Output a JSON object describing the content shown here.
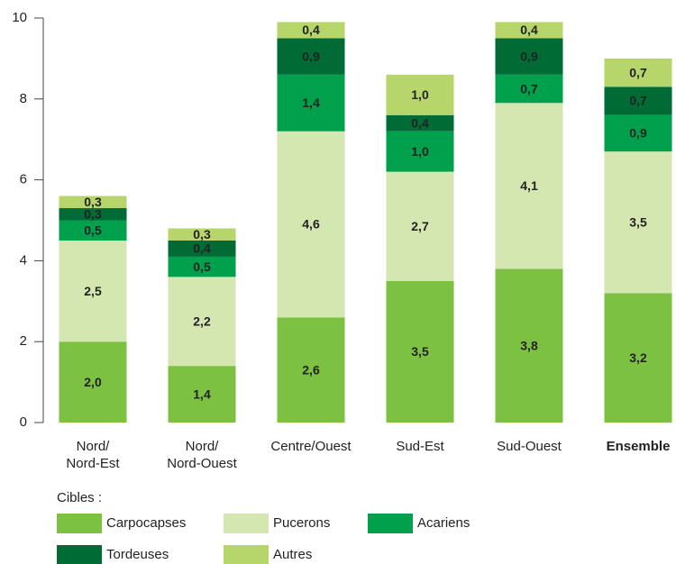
{
  "chart_data": {
    "type": "stacked_bar",
    "categories": [
      "Nord/\nNord-Est",
      "Nord/\nNord-Ouest",
      "Centre/Ouest",
      "Sud-Est",
      "Sud-Ouest",
      "Ensemble"
    ],
    "series": [
      {
        "name": "Carpocapses",
        "color": "#7dc142",
        "values": [
          2.0,
          1.4,
          2.6,
          3.5,
          3.8,
          3.2
        ],
        "value_labels": [
          "2,0",
          "1,4",
          "2,6",
          "3,5",
          "3,8",
          "3,2"
        ]
      },
      {
        "name": "Pucerons",
        "color": "#d5e7b1",
        "values": [
          2.5,
          2.2,
          4.6,
          2.7,
          4.1,
          3.5
        ],
        "value_labels": [
          "2,5",
          "2,2",
          "4,6",
          "2,7",
          "4,1",
          "3,5"
        ]
      },
      {
        "name": "Acariens",
        "color": "#00a04c",
        "values": [
          0.5,
          0.5,
          1.4,
          1.0,
          0.7,
          0.9
        ],
        "value_labels": [
          "0,5",
          "0,5",
          "1,4",
          "1,0",
          "0,7",
          "0,9"
        ]
      },
      {
        "name": "Tordeuses",
        "color": "#006b35",
        "values": [
          0.3,
          0.4,
          0.9,
          0.4,
          0.9,
          0.7
        ],
        "value_labels": [
          "0,3",
          "0,4",
          "0,9",
          "0,4",
          "0,9",
          "0,7"
        ]
      },
      {
        "name": "Autres",
        "color": "#b6d66b",
        "values": [
          0.3,
          0.3,
          0.4,
          1.0,
          0.4,
          0.7
        ],
        "value_labels": [
          "0,3",
          "0,3",
          "0,4",
          "1,0",
          "0,4",
          "0,7"
        ]
      }
    ],
    "legend_title": "Cibles :",
    "ylim": [
      0,
      10
    ],
    "yticks": [
      0,
      2,
      4,
      6,
      8,
      10
    ]
  }
}
